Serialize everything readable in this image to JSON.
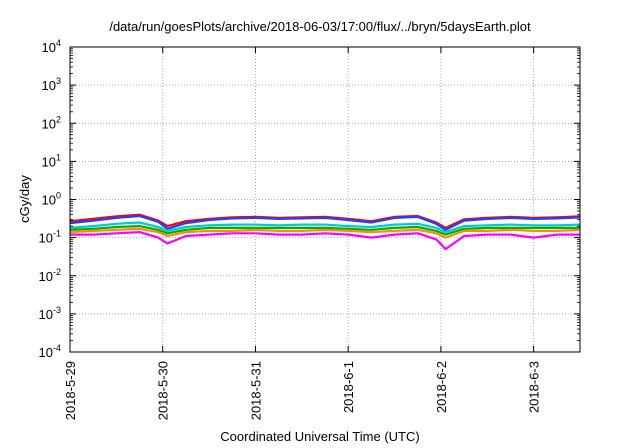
{
  "chart_data": {
    "type": "line",
    "title": "/data/run/goesPlots/archive/2018-06-03/17:00/flux/../bryn/5daysEarth.plot",
    "xlabel": "Coordinated Universal Time (UTC)",
    "ylabel": "cGy/day",
    "yscale": "log",
    "ylim": [
      0.0001,
      10000
    ],
    "yticks": [
      {
        "value": 0.0001,
        "base": "10",
        "exp": "-4"
      },
      {
        "value": 0.001,
        "base": "10",
        "exp": "-3"
      },
      {
        "value": 0.01,
        "base": "10",
        "exp": "-2"
      },
      {
        "value": 0.1,
        "base": "10",
        "exp": "-1"
      },
      {
        "value": 1,
        "base": "10",
        "exp": "0"
      },
      {
        "value": 10,
        "base": "10",
        "exp": "1"
      },
      {
        "value": 100,
        "base": "10",
        "exp": "2"
      },
      {
        "value": 1000,
        "base": "10",
        "exp": "3"
      },
      {
        "value": 10000,
        "base": "10",
        "exp": "4"
      }
    ],
    "xlim_days": [
      0,
      5.5
    ],
    "xticks": [
      {
        "day": 0,
        "label": "2018-5-29"
      },
      {
        "day": 1,
        "label": "2018-5-30"
      },
      {
        "day": 2,
        "label": "2018-5-31"
      },
      {
        "day": 3,
        "label": "2018-6-1"
      },
      {
        "day": 4,
        "label": "2018-6-2"
      },
      {
        "day": 5,
        "label": "2018-6-3"
      }
    ],
    "grid": true,
    "x": [
      0.0,
      0.25,
      0.5,
      0.75,
      0.95,
      1.05,
      1.25,
      1.5,
      1.75,
      2.0,
      2.25,
      2.5,
      2.75,
      3.0,
      3.25,
      3.5,
      3.75,
      3.95,
      4.05,
      4.25,
      4.5,
      4.75,
      5.0,
      5.25,
      5.5
    ],
    "series": [
      {
        "name": "red",
        "color": "#ff0000",
        "values": [
          0.27,
          0.31,
          0.36,
          0.4,
          0.28,
          0.2,
          0.27,
          0.31,
          0.34,
          0.35,
          0.33,
          0.34,
          0.35,
          0.31,
          0.27,
          0.35,
          0.37,
          0.25,
          0.18,
          0.3,
          0.33,
          0.35,
          0.33,
          0.34,
          0.36
        ]
      },
      {
        "name": "blue",
        "color": "#1e40ff",
        "values": [
          0.24,
          0.28,
          0.33,
          0.37,
          0.26,
          0.17,
          0.24,
          0.29,
          0.32,
          0.33,
          0.31,
          0.32,
          0.33,
          0.29,
          0.25,
          0.33,
          0.35,
          0.23,
          0.16,
          0.28,
          0.31,
          0.33,
          0.31,
          0.32,
          0.34
        ]
      },
      {
        "name": "cyan",
        "color": "#00c8d8",
        "values": [
          0.18,
          0.2,
          0.23,
          0.25,
          0.19,
          0.15,
          0.19,
          0.21,
          0.22,
          0.22,
          0.21,
          0.22,
          0.22,
          0.2,
          0.19,
          0.22,
          0.23,
          0.18,
          0.14,
          0.2,
          0.21,
          0.22,
          0.21,
          0.21,
          0.22
        ]
      },
      {
        "name": "green",
        "color": "#00b000",
        "values": [
          0.16,
          0.17,
          0.19,
          0.2,
          0.16,
          0.13,
          0.16,
          0.18,
          0.18,
          0.18,
          0.18,
          0.18,
          0.18,
          0.17,
          0.16,
          0.18,
          0.19,
          0.15,
          0.12,
          0.17,
          0.18,
          0.18,
          0.18,
          0.18,
          0.18
        ]
      },
      {
        "name": "orange",
        "color": "#ff8c00",
        "values": [
          0.14,
          0.15,
          0.16,
          0.17,
          0.14,
          0.11,
          0.14,
          0.15,
          0.15,
          0.16,
          0.15,
          0.15,
          0.16,
          0.15,
          0.14,
          0.15,
          0.16,
          0.13,
          0.1,
          0.15,
          0.15,
          0.16,
          0.15,
          0.15,
          0.16
        ]
      },
      {
        "name": "magenta",
        "color": "#ff00ff",
        "values": [
          0.12,
          0.12,
          0.13,
          0.14,
          0.1,
          0.07,
          0.11,
          0.12,
          0.13,
          0.13,
          0.12,
          0.12,
          0.13,
          0.12,
          0.1,
          0.12,
          0.13,
          0.09,
          0.05,
          0.11,
          0.12,
          0.12,
          0.1,
          0.12,
          0.12
        ]
      }
    ]
  }
}
